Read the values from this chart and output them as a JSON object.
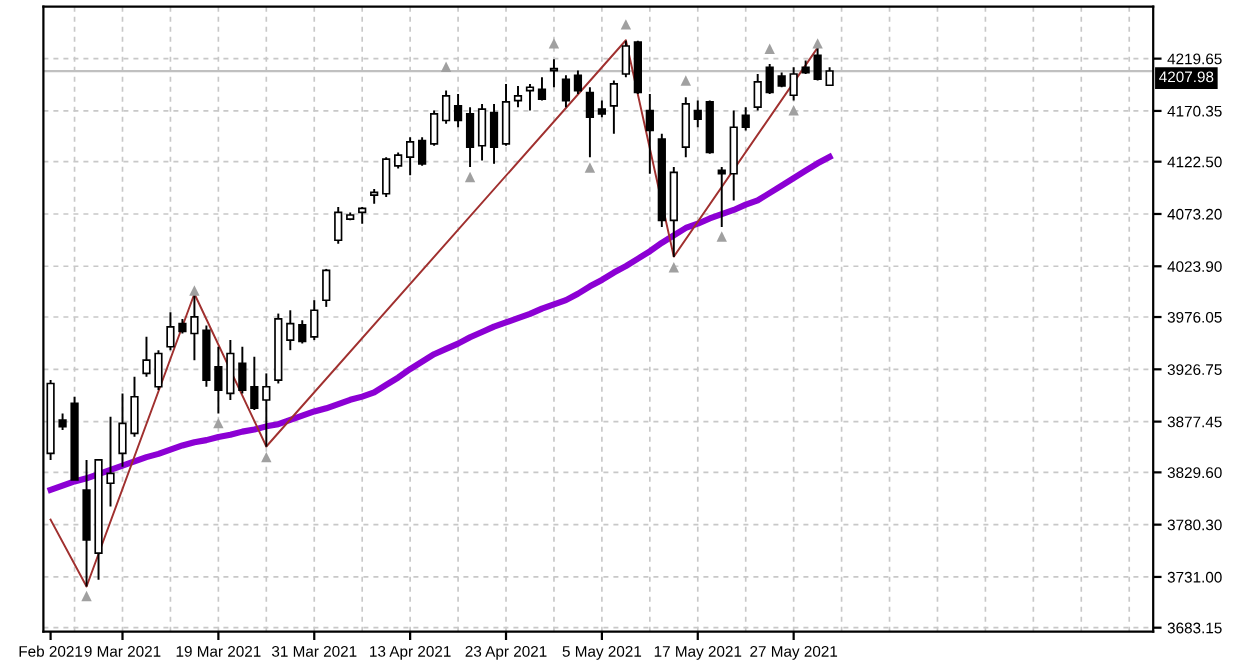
{
  "chart_data": {
    "type": "candlestick",
    "categories": [
      "Feb 2021",
      null,
      null,
      null,
      null,
      null,
      "9 Mar 2021",
      null,
      null,
      null,
      null,
      null,
      null,
      null,
      "19 Mar 2021",
      null,
      null,
      null,
      null,
      null,
      null,
      null,
      "31 Mar 2021",
      null,
      null,
      null,
      null,
      null,
      null,
      null,
      "13 Apr 2021",
      null,
      null,
      null,
      null,
      null,
      null,
      null,
      "23 Apr 2021",
      null,
      null,
      null,
      null,
      null,
      null,
      null,
      "5 May 2021",
      null,
      null,
      null,
      null,
      null,
      null,
      null,
      "17 May 2021",
      null,
      null,
      null,
      null,
      null,
      null,
      null,
      "27 May 2021",
      null,
      null,
      null
    ],
    "color": "#000000",
    "ohlc": [
      [
        3847.5,
        3916.6,
        3841.3,
        3913.4
      ],
      [
        3878.9,
        3885.2,
        3869.5,
        3872.6
      ],
      [
        3894.6,
        3900.9,
        3822.4,
        3822.4
      ],
      [
        3813.0,
        3841.3,
        3722.0,
        3766.0
      ],
      [
        3753.4,
        3841.3,
        3728.3,
        3841.3
      ],
      [
        3819.3,
        3882.1,
        3797.3,
        3828.7
      ],
      [
        3847.5,
        3904.0,
        3835.0,
        3875.8
      ],
      [
        3866.4,
        3919.7,
        3863.2,
        3900.9
      ],
      [
        3922.9,
        3957.4,
        3919.7,
        3935.4
      ],
      [
        3910.3,
        3944.8,
        3907.2,
        3941.7
      ],
      [
        3948.0,
        3980.6,
        3944.8,
        3966.8
      ],
      [
        3969.9,
        3974.3,
        3960.5,
        3962.4
      ],
      [
        3960.5,
        3998.2,
        3935.4,
        3976.2
      ],
      [
        3963.6,
        3968.0,
        3910.3,
        3916.6
      ],
      [
        3929.1,
        3948.0,
        3885.2,
        3907.2
      ],
      [
        3904.0,
        3954.3,
        3897.8,
        3941.7
      ],
      [
        3932.3,
        3948.0,
        3904.0,
        3907.2
      ],
      [
        3910.3,
        3938.5,
        3888.3,
        3890.2
      ],
      [
        3897.8,
        3922.9,
        3853.8,
        3910.3
      ],
      [
        3916.6,
        3979.3,
        3913.4,
        3974.3
      ],
      [
        3954.3,
        3982.4,
        3944.8,
        3969.9
      ],
      [
        3968.7,
        3973.0,
        3951.1,
        3953.0
      ],
      [
        3957.4,
        3991.9,
        3954.3,
        3982.4
      ],
      [
        3991.9,
        4021.4,
        3985.6,
        4020.1
      ],
      [
        4048.4,
        4079.7,
        4045.2,
        4074.7
      ],
      [
        4068.4,
        4074.7,
        4067.2,
        4072.2
      ],
      [
        4074.7,
        4079.7,
        4064.0,
        4078.5
      ],
      [
        4091.0,
        4096.7,
        4082.9,
        4093.5
      ],
      [
        4092.3,
        4126.8,
        4089.1,
        4124.9
      ],
      [
        4118.6,
        4131.2,
        4116.1,
        4128.7
      ],
      [
        4126.8,
        4145.6,
        4109.8,
        4141.2
      ],
      [
        4142.5,
        4145.6,
        4118.6,
        4120.5
      ],
      [
        4139.3,
        4170.7,
        4137.5,
        4167.6
      ],
      [
        4161.3,
        4189.5,
        4158.2,
        4184.5
      ],
      [
        4175.1,
        4186.4,
        4155.0,
        4161.3
      ],
      [
        4167.6,
        4173.9,
        4117.4,
        4136.2
      ],
      [
        4137.5,
        4177.0,
        4123.7,
        4172.0
      ],
      [
        4168.8,
        4177.0,
        4120.5,
        4136.2
      ],
      [
        4139.3,
        4195.8,
        4137.5,
        4178.9
      ],
      [
        4180.1,
        4193.9,
        4173.9,
        4184.5
      ],
      [
        4189.5,
        4195.8,
        4170.7,
        4192.7
      ],
      [
        4190.8,
        4202.1,
        4180.1,
        4181.4
      ],
      [
        4208.4,
        4219.0,
        4192.7,
        4210.2
      ],
      [
        4200.2,
        4204.0,
        4173.9,
        4180.1
      ],
      [
        4204.0,
        4208.4,
        4186.4,
        4189.5
      ],
      [
        4187.7,
        4192.7,
        4126.8,
        4164.4
      ],
      [
        4172.0,
        4180.1,
        4164.4,
        4167.6
      ],
      [
        4175.1,
        4199.0,
        4148.8,
        4195.8
      ],
      [
        4205.2,
        4236.6,
        4202.1,
        4231.6
      ],
      [
        4235.3,
        4236.6,
        4186.4,
        4187.7
      ],
      [
        4170.7,
        4186.4,
        4111.1,
        4151.9
      ],
      [
        4143.7,
        4148.8,
        4060.9,
        4067.2
      ],
      [
        4067.2,
        4117.4,
        4032.7,
        4112.4
      ],
      [
        4136.2,
        4183.3,
        4126.8,
        4177.0
      ],
      [
        4170.7,
        4180.1,
        4155.0,
        4162.6
      ],
      [
        4178.9,
        4180.1,
        4129.9,
        4131.2
      ],
      [
        4114.3,
        4117.4,
        4060.9,
        4111.1
      ],
      [
        4111.1,
        4170.7,
        4086.0,
        4155.0
      ],
      [
        4166.3,
        4173.9,
        4151.9,
        4155.0
      ],
      [
        4173.9,
        4205.2,
        4170.7,
        4197.7
      ],
      [
        4211.5,
        4214.6,
        4186.4,
        4187.7
      ],
      [
        4203.3,
        4206.5,
        4192.7,
        4193.9
      ],
      [
        4185.1,
        4211.5,
        4180.1,
        4205.2
      ],
      [
        4211.5,
        4217.8,
        4205.2,
        4206.5
      ],
      [
        4222.8,
        4230.4,
        4199.0,
        4200.2
      ],
      [
        4194.6,
        4211.5,
        4193.9,
        4207.98
      ]
    ],
    "series": [
      {
        "type": "line",
        "color": "#8c00d4",
        "values": [
          3813,
          3817,
          3821,
          3824,
          3828,
          3832,
          3836,
          3840,
          3844,
          3847,
          3851,
          3855,
          3858,
          3860,
          3863,
          3865,
          3868,
          3870,
          3873,
          3875,
          3879,
          3883,
          3887,
          3890,
          3894,
          3898,
          3901,
          3905,
          3912,
          3919,
          3927,
          3934,
          3941,
          3946,
          3951,
          3957,
          3962,
          3967,
          3971,
          3975,
          3979,
          3984,
          3988,
          3992,
          3998,
          4005,
          4011,
          4018,
          4024,
          4031,
          4038,
          4046,
          4053,
          4060,
          4064,
          4069,
          4073,
          4077,
          4082,
          4086,
          4093,
          4100,
          4107,
          4114,
          4121,
          4127
        ]
      },
      {
        "type": "line",
        "color": "#a0302f",
        "values": [
          3785,
          null,
          null,
          3722,
          null,
          null,
          null,
          null,
          null,
          null,
          null,
          null,
          3998,
          null,
          null,
          null,
          null,
          null,
          3854,
          null,
          null,
          null,
          null,
          null,
          null,
          null,
          null,
          null,
          null,
          null,
          null,
          null,
          null,
          null,
          null,
          null,
          null,
          null,
          null,
          null,
          null,
          null,
          null,
          null,
          null,
          null,
          null,
          null,
          4237,
          null,
          null,
          null,
          4033,
          null,
          null,
          null,
          null,
          null,
          null,
          null,
          null,
          null,
          null,
          null,
          4230,
          null
        ]
      },
      {
        "type": "scatter",
        "marker": "triangle",
        "color": "#a0a0a0",
        "values": [
          null,
          null,
          null,
          null,
          null,
          null,
          null,
          null,
          null,
          null,
          null,
          null,
          4001,
          null,
          null,
          null,
          null,
          null,
          null,
          null,
          null,
          null,
          null,
          null,
          null,
          null,
          null,
          null,
          null,
          null,
          null,
          null,
          null,
          4212,
          null,
          null,
          null,
          null,
          null,
          null,
          null,
          null,
          4234,
          null,
          null,
          null,
          null,
          null,
          4252,
          null,
          null,
          null,
          null,
          4199,
          null,
          null,
          null,
          null,
          null,
          null,
          4229,
          null,
          null,
          null,
          4234,
          null
        ]
      },
      {
        "type": "scatter",
        "marker": "triangle",
        "color": "#a0a0a0",
        "values": [
          null,
          null,
          null,
          3713,
          null,
          null,
          null,
          null,
          null,
          null,
          null,
          null,
          null,
          null,
          3876,
          null,
          null,
          null,
          3844,
          null,
          null,
          null,
          null,
          null,
          null,
          null,
          null,
          null,
          null,
          null,
          null,
          null,
          null,
          null,
          null,
          4108,
          null,
          null,
          null,
          null,
          null,
          null,
          null,
          null,
          null,
          4117,
          null,
          null,
          null,
          null,
          null,
          null,
          4023,
          null,
          null,
          null,
          4052,
          null,
          null,
          null,
          null,
          null,
          4171,
          null,
          null,
          null
        ]
      }
    ],
    "ylim": [
      3679.4,
      4268.6
    ],
    "yticks": [
      {
        "value": 3683.15,
        "label": "3683.15"
      },
      {
        "value": 3731.0,
        "label": "3731.00"
      },
      {
        "value": 3780.3,
        "label": "3780.30"
      },
      {
        "value": 3829.6,
        "label": "3829.60"
      },
      {
        "value": 3877.45,
        "label": "3877.45"
      },
      {
        "value": 3926.75,
        "label": "3926.75"
      },
      {
        "value": 3976.05,
        "label": "3976.05"
      },
      {
        "value": 4023.9,
        "label": "4023.90"
      },
      {
        "value": 4073.2,
        "label": "4073.20"
      },
      {
        "value": 4122.5,
        "label": "4122.50"
      },
      {
        "value": 4170.35,
        "label": "4170.35"
      },
      {
        "value": 4219.65,
        "label": "4219.65"
      }
    ],
    "ref_lines": [
      {
        "axis": "y",
        "value": 4207.98,
        "label": "4207.98",
        "color": "#c0c0c0"
      }
    ],
    "grid": true,
    "legend": false
  }
}
